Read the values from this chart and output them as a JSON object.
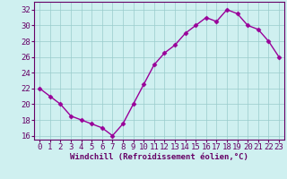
{
  "x": [
    0,
    1,
    2,
    3,
    4,
    5,
    6,
    7,
    8,
    9,
    10,
    11,
    12,
    13,
    14,
    15,
    16,
    17,
    18,
    19,
    20,
    21,
    22,
    23
  ],
  "y": [
    22,
    21,
    20,
    18.5,
    18,
    17.5,
    17,
    16,
    17.5,
    20,
    22.5,
    25,
    26.5,
    27.5,
    29,
    30,
    31,
    30.5,
    32,
    31.5,
    30,
    29.5,
    28,
    26
  ],
  "line_color": "#990099",
  "marker": "D",
  "marker_size": 2.5,
  "bg_color": "#cff0f0",
  "grid_color": "#99cccc",
  "xlabel": "Windchill (Refroidissement éolien,°C)",
  "ylim": [
    15.5,
    33
  ],
  "xlim": [
    -0.5,
    23.5
  ],
  "yticks": [
    16,
    18,
    20,
    22,
    24,
    26,
    28,
    30,
    32
  ],
  "xticks": [
    0,
    1,
    2,
    3,
    4,
    5,
    6,
    7,
    8,
    9,
    10,
    11,
    12,
    13,
    14,
    15,
    16,
    17,
    18,
    19,
    20,
    21,
    22,
    23
  ],
  "xlabel_fontsize": 6.5,
  "tick_fontsize": 6.5,
  "line_width": 1.0,
  "spine_color": "#660066",
  "text_color": "#660066"
}
